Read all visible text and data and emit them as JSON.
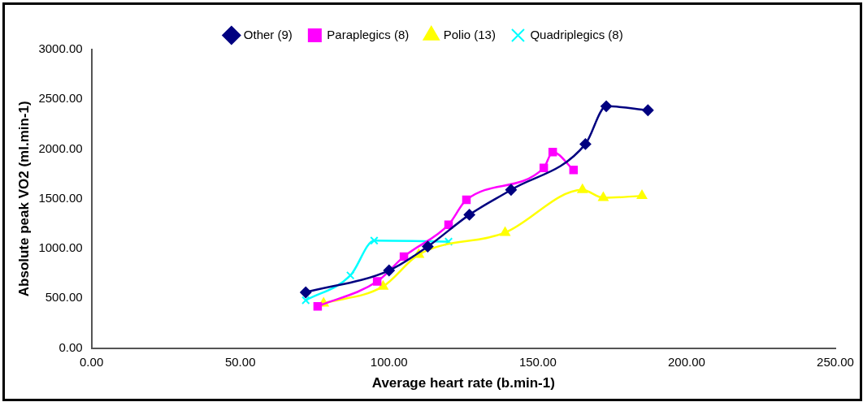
{
  "chart_data": {
    "type": "line",
    "xlabel": "Average heart rate (b.min-1)",
    "ylabel": "Absolute peak VO2 (ml.min-1)",
    "xlim": [
      0,
      250
    ],
    "xticks": [
      {
        "value": 0,
        "label": "0.00"
      },
      {
        "value": 50,
        "label": "50.00"
      },
      {
        "value": 100,
        "label": "100.00"
      },
      {
        "value": 150,
        "label": "150.00"
      },
      {
        "value": 200,
        "label": "200.00"
      },
      {
        "value": 250,
        "label": "250.00"
      }
    ],
    "ylim": [
      0,
      3000
    ],
    "yticks": [
      {
        "value": 0,
        "label": "0.00"
      },
      {
        "value": 500,
        "label": "500.00"
      },
      {
        "value": 1000,
        "label": "1000.00"
      },
      {
        "value": 1500,
        "label": "1500.00"
      },
      {
        "value": 2000,
        "label": "2000.00"
      },
      {
        "value": 2500,
        "label": "2500.00"
      },
      {
        "value": 3000,
        "label": "3000.00"
      }
    ],
    "grid": false,
    "legend": "top",
    "line_style": "solid",
    "series": [
      {
        "name": "Other (9)",
        "color": "#000080",
        "marker": "diamond",
        "x": [
          72,
          100,
          113,
          127,
          141,
          166,
          173,
          187
        ],
        "values": [
          560,
          780,
          1020,
          1340,
          1590,
          2050,
          2430,
          2390
        ]
      },
      {
        "name": "Paraplegics (8)",
        "color": "#ff00ff",
        "marker": "square",
        "x": [
          76,
          96,
          105,
          120,
          126,
          152,
          155,
          162
        ],
        "values": [
          420,
          670,
          920,
          1240,
          1490,
          1810,
          1970,
          1790
        ]
      },
      {
        "name": "Polio (13)",
        "color": "#ffff00",
        "marker": "triangle",
        "x": [
          78,
          98,
          110,
          139,
          165,
          172,
          185
        ],
        "values": [
          450,
          620,
          940,
          1160,
          1590,
          1510,
          1530
        ]
      },
      {
        "name": "Quadriplegics (8)",
        "color": "#00ffff",
        "marker": "cross",
        "x": [
          72,
          87,
          95,
          120
        ],
        "values": [
          480,
          730,
          1080,
          1070
        ]
      }
    ]
  }
}
